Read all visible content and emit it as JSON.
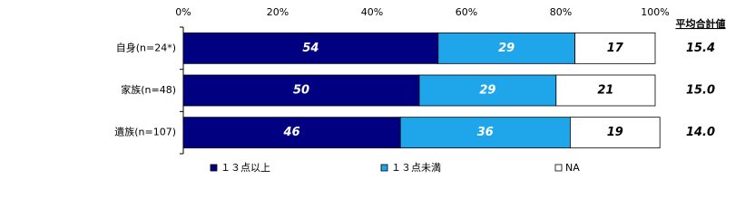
{
  "chart_data": {
    "type": "stacked-bar",
    "orientation": "horizontal",
    "categories": [
      "自身(n=24*)",
      "家族(n=48)",
      "遺族(n=107)"
    ],
    "series": [
      {
        "name": "１３点以上",
        "color": "#000080",
        "label_color": "#ffffff",
        "values": [
          54,
          50,
          46
        ]
      },
      {
        "name": "１３点未満",
        "color": "#1fa6ea",
        "label_color": "#ffffff",
        "values": [
          29,
          29,
          36
        ]
      },
      {
        "name": "NA",
        "color": "#ffffff",
        "label_color": "#000000",
        "values": [
          17,
          21,
          19
        ]
      }
    ],
    "xlim": [
      0,
      100
    ],
    "xticks": [
      {
        "value": 0,
        "label": "0%"
      },
      {
        "value": 20,
        "label": "20%"
      },
      {
        "value": 40,
        "label": "40%"
      },
      {
        "value": 60,
        "label": "60%"
      },
      {
        "value": 80,
        "label": "80%"
      },
      {
        "value": 100,
        "label": "100%"
      }
    ],
    "side_values": {
      "title": "平均合計値",
      "values": [
        15.4,
        15.0,
        14.0
      ],
      "value_labels": [
        "15.4",
        "15.0",
        "14.0"
      ]
    },
    "legend": "bottom"
  }
}
